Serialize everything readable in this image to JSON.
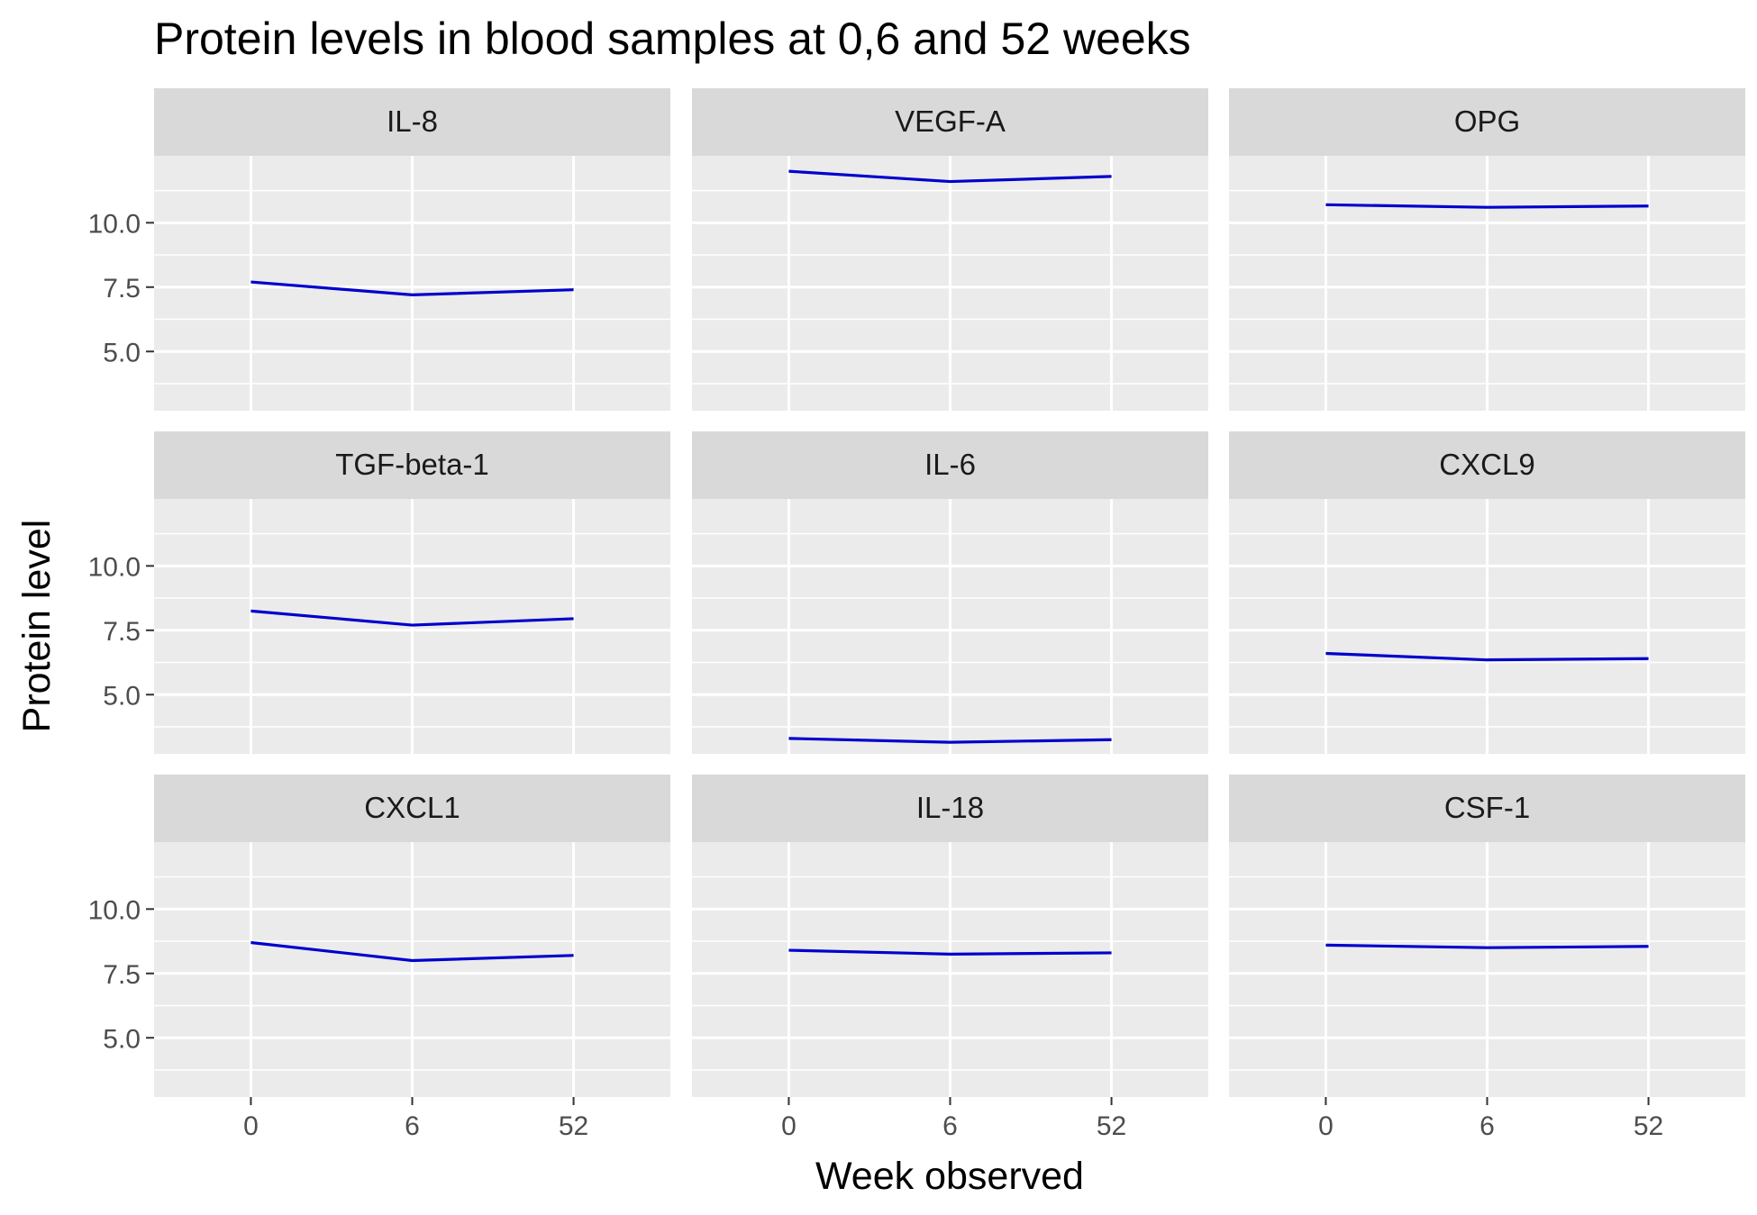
{
  "chart_data": {
    "type": "line",
    "title": "Protein levels in blood samples at 0,6 and 52 weeks",
    "xlabel": "Week observed",
    "ylabel": "Protein level",
    "categories": [
      "0",
      "6",
      "52"
    ],
    "x_ticks": [
      "0",
      "6",
      "52"
    ],
    "y_ticks": [
      "5.0",
      "7.5",
      "10.0"
    ],
    "ylim": [
      2.7,
      12.6
    ],
    "grid": true,
    "line_color": "#0000cd",
    "panel_color": "#ebebeb",
    "strip_color": "#d9d9d9",
    "facets": [
      {
        "name": "IL-8",
        "values": [
          7.7,
          7.2,
          7.4
        ]
      },
      {
        "name": "VEGF-A",
        "values": [
          12.0,
          11.6,
          11.8
        ]
      },
      {
        "name": "OPG",
        "values": [
          10.7,
          10.6,
          10.65
        ]
      },
      {
        "name": "TGF-beta-1",
        "values": [
          8.25,
          7.7,
          7.95
        ]
      },
      {
        "name": "IL-6",
        "values": [
          3.3,
          3.15,
          3.25
        ]
      },
      {
        "name": "CXCL9",
        "values": [
          6.6,
          6.35,
          6.4
        ]
      },
      {
        "name": "CXCL1",
        "values": [
          8.7,
          8.0,
          8.2
        ]
      },
      {
        "name": "IL-18",
        "values": [
          8.4,
          8.25,
          8.3
        ]
      },
      {
        "name": "CSF-1",
        "values": [
          8.6,
          8.5,
          8.55
        ]
      }
    ]
  }
}
